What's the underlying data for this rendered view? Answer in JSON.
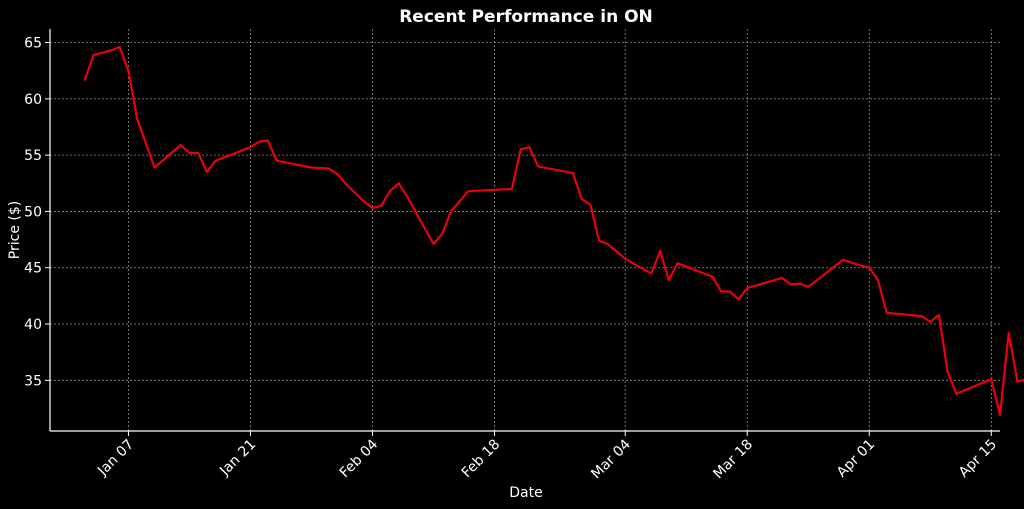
{
  "chart_data": {
    "type": "line",
    "title": "Recent Performance in ON",
    "xlabel": "Date",
    "ylabel": "Price ($)",
    "grid": true,
    "xlim": [
      "2023-12-29",
      "2024-04-16"
    ],
    "ylim": [
      30.5,
      66.2
    ],
    "x_ticks": [
      {
        "date": "2024-01-07",
        "label": "Jan 07"
      },
      {
        "date": "2024-01-21",
        "label": "Jan 21"
      },
      {
        "date": "2024-02-04",
        "label": "Feb 04"
      },
      {
        "date": "2024-02-18",
        "label": "Feb 18"
      },
      {
        "date": "2024-03-04",
        "label": "Mar 04"
      },
      {
        "date": "2024-03-18",
        "label": "Mar 18"
      },
      {
        "date": "2024-04-01",
        "label": "Apr 01"
      },
      {
        "date": "2024-04-15",
        "label": "Apr 15"
      }
    ],
    "y_ticks": [
      35,
      40,
      45,
      50,
      55,
      60,
      65
    ],
    "series": [
      {
        "color": "#e8000b",
        "points": [
          [
            "2024-01-02",
            61.7
          ],
          [
            "2024-01-03",
            63.9
          ],
          [
            "2024-01-05",
            64.3
          ],
          [
            "2024-01-06",
            64.6
          ],
          [
            "2024-01-07",
            62.5
          ],
          [
            "2024-01-08",
            58.2
          ],
          [
            "2024-01-10",
            53.9
          ],
          [
            "2024-01-13",
            55.9
          ],
          [
            "2024-01-14",
            55.2
          ],
          [
            "2024-01-15",
            55.2
          ],
          [
            "2024-01-16",
            53.5
          ],
          [
            "2024-01-17",
            54.5
          ],
          [
            "2024-01-21",
            55.7
          ],
          [
            "2024-01-22",
            56.2
          ],
          [
            "2024-01-23",
            56.3
          ],
          [
            "2024-01-24",
            54.5
          ],
          [
            "2024-01-28",
            53.9
          ],
          [
            "2024-01-30",
            53.8
          ],
          [
            "2024-01-31",
            53.3
          ],
          [
            "2024-02-01",
            52.4
          ],
          [
            "2024-02-03",
            50.9
          ],
          [
            "2024-02-04",
            50.3
          ],
          [
            "2024-02-05",
            50.5
          ],
          [
            "2024-02-06",
            51.8
          ],
          [
            "2024-02-07",
            52.5
          ],
          [
            "2024-02-08",
            51.3
          ],
          [
            "2024-02-11",
            47.1
          ],
          [
            "2024-02-12",
            48.0
          ],
          [
            "2024-02-13",
            50.0
          ],
          [
            "2024-02-15",
            51.8
          ],
          [
            "2024-02-20",
            52.0
          ],
          [
            "2024-02-21",
            55.5
          ],
          [
            "2024-02-22",
            55.7
          ],
          [
            "2024-02-23",
            54.0
          ],
          [
            "2024-02-27",
            53.4
          ],
          [
            "2024-02-28",
            51.1
          ],
          [
            "2024-02-29",
            50.6
          ],
          [
            "2024-03-01",
            47.4
          ],
          [
            "2024-03-02",
            47.1
          ],
          [
            "2024-03-04",
            45.8
          ],
          [
            "2024-03-06",
            44.9
          ],
          [
            "2024-03-07",
            44.5
          ],
          [
            "2024-03-08",
            46.5
          ],
          [
            "2024-03-09",
            43.9
          ],
          [
            "2024-03-10",
            45.4
          ],
          [
            "2024-03-13",
            44.5
          ],
          [
            "2024-03-14",
            44.2
          ],
          [
            "2024-03-15",
            42.9
          ],
          [
            "2024-03-16",
            42.9
          ],
          [
            "2024-03-17",
            42.2
          ],
          [
            "2024-03-18",
            43.2
          ],
          [
            "2024-03-22",
            44.1
          ],
          [
            "2024-03-23",
            43.5
          ],
          [
            "2024-03-24",
            43.6
          ],
          [
            "2024-03-25",
            43.3
          ],
          [
            "2024-03-29",
            45.7
          ],
          [
            "2024-03-31",
            45.2
          ],
          [
            "2024-04-01",
            45.0
          ],
          [
            "2024-04-02",
            43.9
          ],
          [
            "2024-04-03",
            41.0
          ],
          [
            "2024-04-07",
            40.7
          ],
          [
            "2024-04-08",
            40.2
          ],
          [
            "2024-04-09",
            40.8
          ],
          [
            "2024-04-10",
            35.7
          ],
          [
            "2024-04-11",
            33.8
          ],
          [
            "2024-04-15",
            35.1
          ],
          [
            "2024-04-16",
            31.9
          ],
          [
            "2024-04-17",
            39.2
          ],
          [
            "2024-04-18",
            34.9
          ],
          [
            "2024-04-19",
            35.1
          ]
        ]
      }
    ]
  }
}
